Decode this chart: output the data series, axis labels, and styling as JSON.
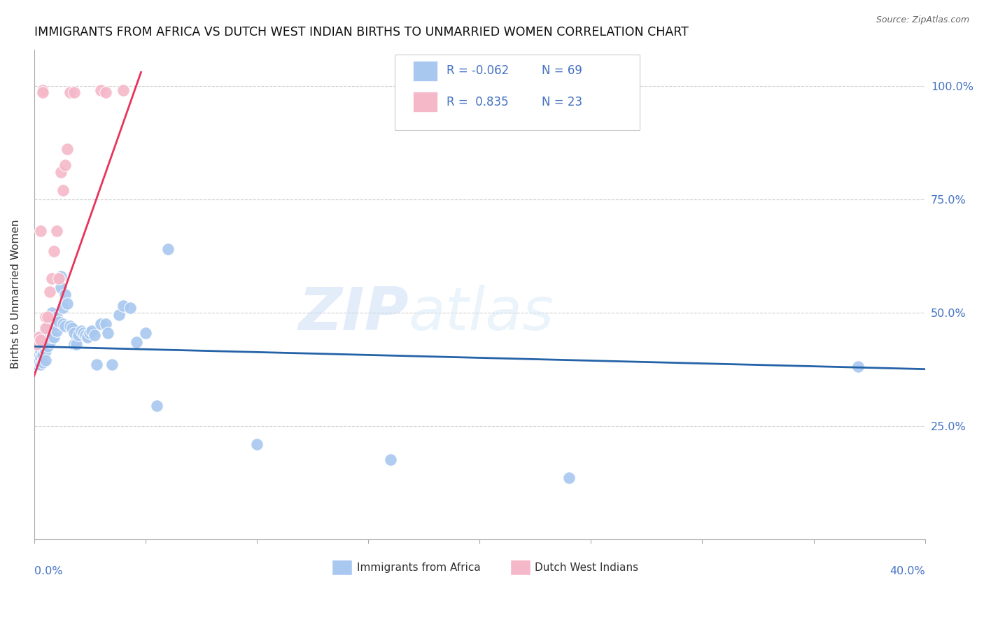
{
  "title": "IMMIGRANTS FROM AFRICA VS DUTCH WEST INDIAN BIRTHS TO UNMARRIED WOMEN CORRELATION CHART",
  "source": "Source: ZipAtlas.com",
  "ylabel": "Births to Unmarried Women",
  "legend_label1": "Immigrants from Africa",
  "legend_label2": "Dutch West Indians",
  "R1": "-0.062",
  "N1": "69",
  "R2": "0.835",
  "N2": "23",
  "blue_color": "#a8c8f0",
  "pink_color": "#f5b8c8",
  "blue_line_color": "#2563a8",
  "pink_line_color": "#e8335a",
  "watermark_part1": "ZIP",
  "watermark_part2": "atlas",
  "xlim": [
    0.0,
    0.4
  ],
  "ylim": [
    0.0,
    1.08
  ],
  "ytick_values": [
    0.0,
    0.25,
    0.5,
    0.75,
    1.0
  ],
  "ytick_labels": [
    "",
    "25.0%",
    "50.0%",
    "75.0%",
    "100.0%"
  ],
  "blue_dots_x": [
    0.001,
    0.001,
    0.001,
    0.002,
    0.002,
    0.002,
    0.003,
    0.003,
    0.003,
    0.003,
    0.004,
    0.004,
    0.004,
    0.004,
    0.004,
    0.005,
    0.005,
    0.005,
    0.005,
    0.006,
    0.006,
    0.006,
    0.007,
    0.007,
    0.007,
    0.008,
    0.008,
    0.008,
    0.009,
    0.009,
    0.01,
    0.01,
    0.011,
    0.012,
    0.012,
    0.013,
    0.013,
    0.014,
    0.014,
    0.015,
    0.016,
    0.017,
    0.018,
    0.018,
    0.019,
    0.02,
    0.021,
    0.022,
    0.023,
    0.024,
    0.025,
    0.026,
    0.027,
    0.028,
    0.03,
    0.032,
    0.033,
    0.035,
    0.038,
    0.04,
    0.043,
    0.046,
    0.05,
    0.055,
    0.06,
    0.1,
    0.16,
    0.24,
    0.37
  ],
  "blue_dots_y": [
    0.425,
    0.405,
    0.385,
    0.42,
    0.405,
    0.39,
    0.425,
    0.415,
    0.4,
    0.385,
    0.45,
    0.435,
    0.42,
    0.405,
    0.39,
    0.455,
    0.435,
    0.415,
    0.395,
    0.465,
    0.445,
    0.425,
    0.49,
    0.455,
    0.435,
    0.5,
    0.47,
    0.445,
    0.47,
    0.445,
    0.49,
    0.46,
    0.48,
    0.58,
    0.555,
    0.51,
    0.475,
    0.54,
    0.47,
    0.52,
    0.47,
    0.465,
    0.455,
    0.43,
    0.43,
    0.45,
    0.46,
    0.455,
    0.45,
    0.445,
    0.455,
    0.46,
    0.45,
    0.385,
    0.475,
    0.475,
    0.455,
    0.385,
    0.495,
    0.515,
    0.51,
    0.435,
    0.455,
    0.295,
    0.64,
    0.21,
    0.175,
    0.135,
    0.38
  ],
  "pink_dots_x": [
    0.001,
    0.002,
    0.003,
    0.003,
    0.004,
    0.004,
    0.005,
    0.005,
    0.006,
    0.007,
    0.008,
    0.009,
    0.01,
    0.011,
    0.012,
    0.013,
    0.014,
    0.015,
    0.016,
    0.018,
    0.03,
    0.032,
    0.04
  ],
  "pink_dots_y": [
    0.43,
    0.445,
    0.68,
    0.44,
    0.99,
    0.985,
    0.49,
    0.465,
    0.49,
    0.545,
    0.575,
    0.635,
    0.68,
    0.575,
    0.81,
    0.77,
    0.825,
    0.86,
    0.985,
    0.985,
    0.99,
    0.985,
    0.99
  ],
  "blue_trendline_x": [
    0.0,
    0.4
  ],
  "blue_trendline_y": [
    0.425,
    0.375
  ],
  "pink_trendline_x": [
    0.0,
    0.048
  ],
  "pink_trendline_y": [
    0.36,
    1.03
  ]
}
